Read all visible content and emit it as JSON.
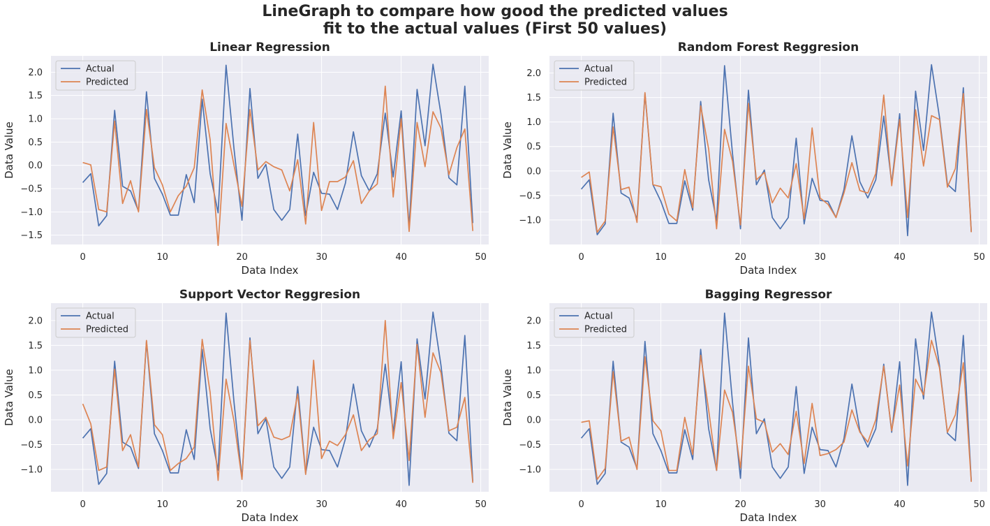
{
  "title_lines": [
    "LineGraph to compare how good the predicted values",
    "fit to the actual values (First 50 values)"
  ],
  "colors": {
    "actual": "#4c72b0",
    "predicted": "#dd8452",
    "axes_bg": "#eaeaf2",
    "grid": "#ffffff"
  },
  "chart_data": [
    {
      "type": "line",
      "title": "Linear Regression",
      "xlabel": "Data Index",
      "ylabel": "Data Value",
      "xlim": [
        -4,
        51
      ],
      "ylim": [
        -1.7,
        2.35
      ],
      "xticks": [
        0,
        10,
        20,
        30,
        40,
        50
      ],
      "yticks": [
        -1.5,
        -1.0,
        -0.5,
        0.0,
        0.5,
        1.0,
        1.5,
        2.0
      ],
      "ytick_labels": [
        "−1.5",
        "−1.0",
        "−0.5",
        "0.0",
        "0.5",
        "1.0",
        "1.5",
        "2.0"
      ],
      "grid": true,
      "legend": "top-left",
      "series": [
        {
          "name": "Actual",
          "values": [
            -0.37,
            -0.18,
            -1.3,
            -1.08,
            1.18,
            -0.45,
            -0.55,
            -0.98,
            1.58,
            -0.28,
            -0.62,
            -1.07,
            -1.07,
            -0.2,
            -0.8,
            1.42,
            -0.18,
            -1.02,
            2.15,
            0.35,
            -1.18,
            1.65,
            -0.28,
            0.02,
            -0.95,
            -1.18,
            -0.95,
            0.67,
            -1.08,
            -0.15,
            -0.6,
            -0.62,
            -0.95,
            -0.38,
            0.72,
            -0.22,
            -0.55,
            -0.18,
            1.12,
            -0.25,
            1.17,
            -1.32,
            1.63,
            0.42,
            2.17,
            1.1,
            -0.27,
            -0.42,
            1.7,
            -1.24
          ]
        },
        {
          "name": "Predicted",
          "values": [
            0.06,
            0.01,
            -0.95,
            -1.0,
            0.95,
            -0.82,
            -0.33,
            -1.0,
            1.2,
            -0.05,
            -0.42,
            -1.0,
            -0.65,
            -0.45,
            -0.05,
            1.62,
            0.55,
            -1.72,
            0.9,
            0.0,
            -0.88,
            1.2,
            -0.1,
            0.08,
            -0.03,
            -0.1,
            -0.55,
            0.12,
            -1.26,
            0.92,
            -0.97,
            -0.35,
            -0.35,
            -0.25,
            0.1,
            -0.82,
            -0.55,
            -0.4,
            1.7,
            -0.68,
            1.0,
            -1.42,
            0.92,
            -0.03,
            1.15,
            0.8,
            -0.2,
            0.38,
            0.78,
            -1.41
          ]
        }
      ]
    },
    {
      "type": "line",
      "title": "Random Forest Reggresion",
      "xlabel": "Data Index",
      "ylabel": "Data Value",
      "xlim": [
        -4,
        51
      ],
      "ylim": [
        -1.5,
        2.35
      ],
      "xticks": [
        0,
        10,
        20,
        30,
        40,
        50
      ],
      "yticks": [
        -1.0,
        -0.5,
        0.0,
        0.5,
        1.0,
        1.5,
        2.0
      ],
      "ytick_labels": [
        "−1.0",
        "−0.5",
        "0.0",
        "0.5",
        "1.0",
        "1.5",
        "2.0"
      ],
      "grid": true,
      "legend": "top-left",
      "series": [
        {
          "name": "Actual",
          "values": [
            -0.37,
            -0.18,
            -1.3,
            -1.08,
            1.18,
            -0.45,
            -0.55,
            -0.98,
            1.58,
            -0.28,
            -0.62,
            -1.07,
            -1.07,
            -0.2,
            -0.8,
            1.42,
            -0.18,
            -1.02,
            2.15,
            0.35,
            -1.18,
            1.65,
            -0.28,
            0.02,
            -0.95,
            -1.18,
            -0.95,
            0.67,
            -1.08,
            -0.15,
            -0.6,
            -0.62,
            -0.95,
            -0.38,
            0.72,
            -0.22,
            -0.55,
            -0.18,
            1.12,
            -0.25,
            1.17,
            -1.32,
            1.63,
            0.42,
            2.17,
            1.1,
            -0.27,
            -0.42,
            1.7,
            -1.24
          ]
        },
        {
          "name": "Predicted",
          "values": [
            -0.13,
            -0.02,
            -1.25,
            -1.02,
            0.9,
            -0.38,
            -0.33,
            -1.05,
            1.6,
            -0.28,
            -0.32,
            -0.88,
            -1.02,
            0.03,
            -0.75,
            1.33,
            0.45,
            -1.18,
            0.85,
            0.2,
            -1.1,
            1.38,
            -0.18,
            -0.03,
            -0.65,
            -0.35,
            -0.55,
            0.15,
            -0.98,
            0.88,
            -0.55,
            -0.68,
            -0.95,
            -0.45,
            0.17,
            -0.4,
            -0.45,
            -0.05,
            1.55,
            -0.3,
            1.05,
            -0.95,
            1.25,
            0.1,
            1.13,
            1.05,
            -0.33,
            0.05,
            1.58,
            -1.25
          ]
        }
      ]
    },
    {
      "type": "line",
      "title": "Support Vector Reggresion",
      "xlabel": "Data Index",
      "ylabel": "Data Value",
      "xlim": [
        -4,
        51
      ],
      "ylim": [
        -1.45,
        2.35
      ],
      "xticks": [
        0,
        10,
        20,
        30,
        40,
        50
      ],
      "yticks": [
        -1.0,
        -0.5,
        0.0,
        0.5,
        1.0,
        1.5,
        2.0
      ],
      "ytick_labels": [
        "−1.0",
        "−0.5",
        "0.0",
        "0.5",
        "1.0",
        "1.5",
        "2.0"
      ],
      "grid": true,
      "legend": "top-left",
      "series": [
        {
          "name": "Actual",
          "values": [
            -0.37,
            -0.18,
            -1.3,
            -1.08,
            1.18,
            -0.45,
            -0.55,
            -0.98,
            1.58,
            -0.28,
            -0.62,
            -1.07,
            -1.07,
            -0.2,
            -0.8,
            1.42,
            -0.18,
            -1.02,
            2.15,
            0.35,
            -1.18,
            1.65,
            -0.28,
            0.02,
            -0.95,
            -1.18,
            -0.95,
            0.67,
            -1.08,
            -0.15,
            -0.6,
            -0.62,
            -0.95,
            -0.38,
            0.72,
            -0.22,
            -0.55,
            -0.18,
            1.12,
            -0.25,
            1.17,
            -1.32,
            1.63,
            0.42,
            2.17,
            1.1,
            -0.27,
            -0.42,
            1.7,
            -1.24
          ]
        },
        {
          "name": "Predicted",
          "values": [
            0.32,
            -0.08,
            -1.02,
            -0.95,
            1.02,
            -0.62,
            -0.3,
            -0.95,
            1.6,
            -0.1,
            -0.3,
            -1.02,
            -0.88,
            -0.78,
            -0.55,
            1.62,
            0.55,
            -1.22,
            0.82,
            -0.03,
            -1.2,
            1.6,
            -0.12,
            0.05,
            -0.35,
            -0.4,
            -0.33,
            0.52,
            -1.1,
            1.2,
            -0.78,
            -0.43,
            -0.52,
            -0.3,
            0.1,
            -0.62,
            -0.4,
            -0.28,
            2.0,
            -0.38,
            0.75,
            -0.82,
            1.52,
            0.05,
            1.35,
            0.95,
            -0.22,
            -0.15,
            0.45,
            -1.27
          ]
        }
      ]
    },
    {
      "type": "line",
      "title": "Bagging Regressor",
      "xlabel": "Data Index",
      "ylabel": "Data Value",
      "xlim": [
        -4,
        51
      ],
      "ylim": [
        -1.45,
        2.35
      ],
      "xticks": [
        0,
        10,
        20,
        30,
        40,
        50
      ],
      "yticks": [
        -1.0,
        -0.5,
        0.0,
        0.5,
        1.0,
        1.5,
        2.0
      ],
      "ytick_labels": [
        "−1.0",
        "−0.5",
        "0.0",
        "0.5",
        "1.0",
        "1.5",
        "2.0"
      ],
      "grid": true,
      "legend": "top-left",
      "series": [
        {
          "name": "Actual",
          "values": [
            -0.37,
            -0.18,
            -1.3,
            -1.08,
            1.18,
            -0.45,
            -0.55,
            -0.98,
            1.58,
            -0.28,
            -0.62,
            -1.07,
            -1.07,
            -0.2,
            -0.8,
            1.42,
            -0.18,
            -1.02,
            2.15,
            0.35,
            -1.18,
            1.65,
            -0.28,
            0.02,
            -0.95,
            -1.18,
            -0.95,
            0.67,
            -1.08,
            -0.15,
            -0.6,
            -0.62,
            -0.95,
            -0.38,
            0.72,
            -0.22,
            -0.55,
            -0.18,
            1.12,
            -0.25,
            1.17,
            -1.32,
            1.63,
            0.42,
            2.17,
            1.1,
            -0.27,
            -0.42,
            1.7,
            -1.24
          ]
        },
        {
          "name": "Predicted",
          "values": [
            -0.05,
            -0.02,
            -1.2,
            -0.98,
            0.97,
            -0.43,
            -0.35,
            -1.0,
            1.27,
            -0.02,
            -0.22,
            -1.02,
            -1.02,
            0.05,
            -0.7,
            1.3,
            0.2,
            -1.02,
            0.6,
            0.15,
            -0.97,
            1.08,
            0.02,
            -0.05,
            -0.65,
            -0.48,
            -0.7,
            0.17,
            -0.88,
            0.33,
            -0.72,
            -0.68,
            -0.6,
            -0.45,
            0.2,
            -0.25,
            -0.45,
            0.0,
            1.08,
            -0.22,
            0.7,
            -0.93,
            0.82,
            0.5,
            1.6,
            1.05,
            -0.25,
            0.1,
            1.15,
            -1.25
          ]
        }
      ]
    }
  ]
}
